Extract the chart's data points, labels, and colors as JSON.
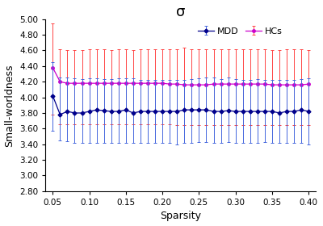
{
  "title": "σ",
  "xlabel": "Sparsity",
  "ylabel": "Small-worldness",
  "xlim": [
    0.04,
    0.41
  ],
  "ylim": [
    2.8,
    5.0
  ],
  "xticks": [
    0.05,
    0.1,
    0.15,
    0.2,
    0.25,
    0.3,
    0.35,
    0.4
  ],
  "yticks": [
    2.8,
    3.0,
    3.2,
    3.4,
    3.6,
    3.8,
    4.0,
    4.2,
    4.4,
    4.6,
    4.8,
    5.0
  ],
  "sparsity": [
    0.05,
    0.06,
    0.07,
    0.08,
    0.09,
    0.1,
    0.11,
    0.12,
    0.13,
    0.14,
    0.15,
    0.16,
    0.17,
    0.18,
    0.19,
    0.2,
    0.21,
    0.22,
    0.23,
    0.24,
    0.25,
    0.26,
    0.27,
    0.28,
    0.29,
    0.3,
    0.31,
    0.32,
    0.33,
    0.34,
    0.35,
    0.36,
    0.37,
    0.38,
    0.39,
    0.4
  ],
  "mdd_mean": [
    4.02,
    3.78,
    3.82,
    3.8,
    3.8,
    3.82,
    3.84,
    3.83,
    3.82,
    3.82,
    3.84,
    3.8,
    3.82,
    3.82,
    3.82,
    3.82,
    3.82,
    3.82,
    3.84,
    3.84,
    3.84,
    3.84,
    3.82,
    3.82,
    3.83,
    3.82,
    3.82,
    3.82,
    3.82,
    3.82,
    3.82,
    3.8,
    3.82,
    3.82,
    3.84,
    3.82
  ],
  "mdd_upper": [
    4.45,
    4.25,
    4.25,
    4.24,
    4.23,
    4.24,
    4.24,
    4.23,
    4.23,
    4.24,
    4.24,
    4.24,
    4.22,
    4.22,
    4.22,
    4.22,
    4.22,
    4.22,
    4.22,
    4.23,
    4.24,
    4.25,
    4.25,
    4.23,
    4.25,
    4.23,
    4.22,
    4.22,
    4.23,
    4.22,
    4.22,
    4.22,
    4.22,
    4.22,
    4.23,
    4.24
  ],
  "mdd_lower": [
    3.57,
    3.45,
    3.44,
    3.42,
    3.42,
    3.42,
    3.42,
    3.42,
    3.42,
    3.42,
    3.42,
    3.42,
    3.42,
    3.42,
    3.42,
    3.42,
    3.42,
    3.4,
    3.42,
    3.42,
    3.43,
    3.43,
    3.42,
    3.42,
    3.43,
    3.42,
    3.42,
    3.42,
    3.42,
    3.43,
    3.42,
    3.42,
    3.42,
    3.42,
    3.42,
    3.4
  ],
  "hcs_mean": [
    4.38,
    4.2,
    4.18,
    4.18,
    4.18,
    4.18,
    4.18,
    4.18,
    4.18,
    4.18,
    4.18,
    4.18,
    4.18,
    4.18,
    4.18,
    4.18,
    4.17,
    4.17,
    4.16,
    4.16,
    4.16,
    4.16,
    4.17,
    4.17,
    4.17,
    4.17,
    4.17,
    4.17,
    4.17,
    4.17,
    4.16,
    4.16,
    4.16,
    4.16,
    4.16,
    4.17
  ],
  "hcs_upper": [
    4.95,
    4.62,
    4.61,
    4.61,
    4.61,
    4.62,
    4.62,
    4.62,
    4.61,
    4.62,
    4.62,
    4.61,
    4.62,
    4.62,
    4.62,
    4.62,
    4.62,
    4.62,
    4.64,
    4.62,
    4.62,
    4.62,
    4.62,
    4.62,
    4.62,
    4.62,
    4.62,
    4.62,
    4.62,
    4.62,
    4.61,
    4.61,
    4.62,
    4.62,
    4.62,
    4.61
  ],
  "hcs_lower": [
    3.78,
    3.66,
    3.66,
    3.66,
    3.66,
    3.66,
    3.66,
    3.66,
    3.66,
    3.66,
    3.66,
    3.66,
    3.66,
    3.66,
    3.66,
    3.66,
    3.66,
    3.65,
    3.65,
    3.65,
    3.65,
    3.65,
    3.65,
    3.65,
    3.65,
    3.65,
    3.65,
    3.65,
    3.65,
    3.65,
    3.65,
    3.65,
    3.65,
    3.65,
    3.65,
    3.65
  ],
  "mdd_color": "#00008B",
  "hcs_color": "#cc00cc",
  "mdd_err_color": "#4466dd",
  "hcs_err_color": "#ff4444",
  "background_color": "#ffffff",
  "title_fontsize": 13,
  "label_fontsize": 9,
  "tick_fontsize": 7.5,
  "legend_fontsize": 8
}
